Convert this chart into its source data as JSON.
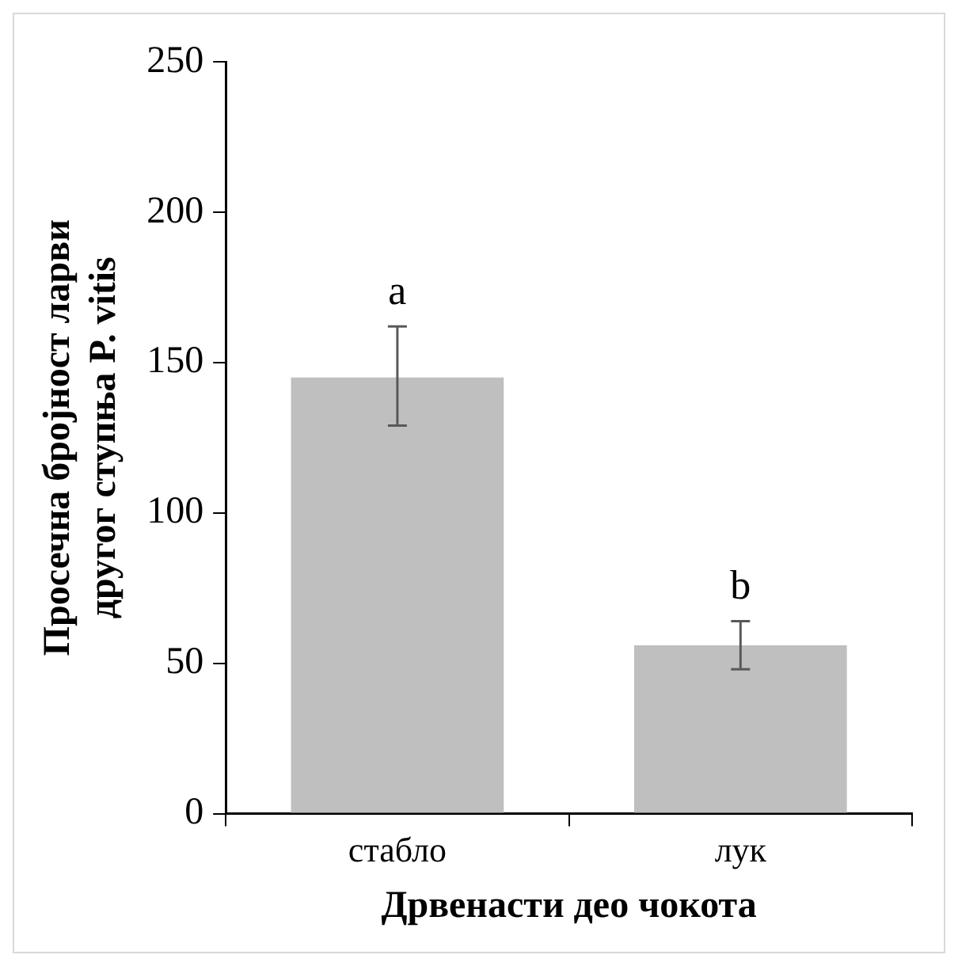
{
  "chart_data": {
    "type": "bar",
    "xlabel": "Дрвенасти део чокота",
    "ylabel": "Просечна бројност ларви\nдругог ступња P. vitis",
    "categories": [
      "стабло",
      "лук"
    ],
    "values": [
      145,
      56
    ],
    "color": "#bfbfbf",
    "errors": [
      [
        129,
        162
      ],
      [
        48,
        64
      ]
    ],
    "ylim": [
      0,
      250
    ],
    "yticks": [
      0,
      50,
      100,
      150,
      200,
      250
    ],
    "grid": false,
    "legend": false,
    "annotations": [
      {
        "text": "a",
        "x": "стабло",
        "y": 162
      },
      {
        "text": "b",
        "x": "лук",
        "y": 64
      }
    ]
  }
}
